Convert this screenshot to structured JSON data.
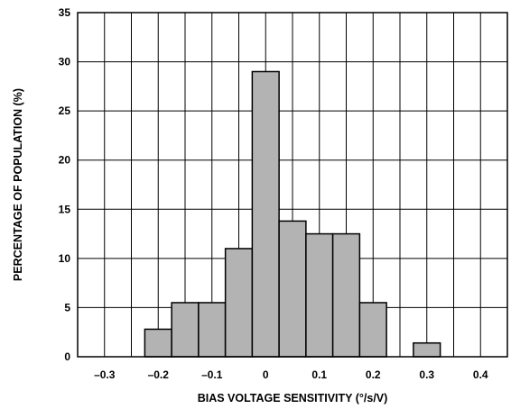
{
  "chart_data": {
    "type": "bar",
    "title": "",
    "xlabel": "BIAS VOLTAGE SENSITIVITY (°/s/V)",
    "ylabel": "PERCENTAGE OF POPULATION (%)",
    "xlim": [
      -0.35,
      0.45
    ],
    "ylim": [
      0,
      35
    ],
    "x_ticks": [
      -0.3,
      -0.2,
      -0.1,
      0,
      0.1,
      0.2,
      0.3,
      0.4
    ],
    "x_tick_labels": [
      "–0.3",
      "–0.2",
      "–0.1",
      "0",
      "0.1",
      "0.2",
      "0.3",
      "0.4"
    ],
    "y_ticks": [
      0,
      5,
      10,
      15,
      20,
      25,
      30,
      35
    ],
    "y_tick_labels": [
      "0",
      "5",
      "10",
      "15",
      "20",
      "25",
      "30",
      "35"
    ],
    "bin_width": 0.05,
    "bins": [
      {
        "x": -0.2,
        "value": 2.8
      },
      {
        "x": -0.15,
        "value": 5.5
      },
      {
        "x": -0.1,
        "value": 5.5
      },
      {
        "x": -0.05,
        "value": 11
      },
      {
        "x": 0,
        "value": 29
      },
      {
        "x": 0.05,
        "value": 13.8
      },
      {
        "x": 0.1,
        "value": 12.5
      },
      {
        "x": 0.15,
        "value": 12.5
      },
      {
        "x": 0.2,
        "value": 5.5
      },
      {
        "x": 0.3,
        "value": 1.4
      }
    ],
    "grid": true,
    "bar_color": "#b3b3b3",
    "edge_color": "#000000"
  }
}
